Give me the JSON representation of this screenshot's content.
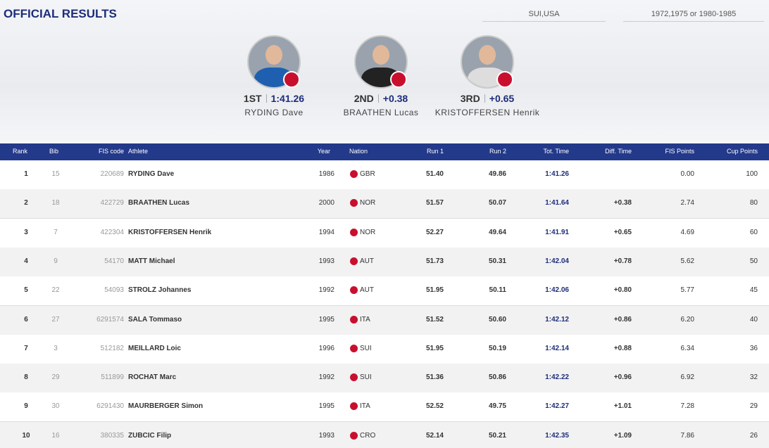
{
  "header": {
    "title": "OFFICIAL RESULTS",
    "filters": [
      "SUI,USA",
      "1972,1975 or 1980-1985"
    ]
  },
  "podium": [
    {
      "place": "1ST",
      "result": "1:41.26",
      "name": "RYDING Dave"
    },
    {
      "place": "2ND",
      "result": "+0.38",
      "name": "BRAATHEN Lucas"
    },
    {
      "place": "3RD",
      "result": "+0.65",
      "name": "KRISTOFFERSEN Henrik"
    }
  ],
  "table": {
    "columns": [
      "Rank",
      "Bib",
      "FIS code",
      "Athlete",
      "Year",
      "Nation",
      "Run 1",
      "Run 2",
      "Tot. Time",
      "Diff. Time",
      "FIS Points",
      "Cup Points"
    ],
    "rows": [
      {
        "rank": "1",
        "bib": "15",
        "code": "220689",
        "athlete": "RYDING Dave",
        "year": "1986",
        "nation": "GBR",
        "run1": "51.40",
        "run2": "49.86",
        "tot": "1:41.26",
        "fis": "0.00",
        "cup": "100"
      },
      {
        "rank": "2",
        "bib": "18",
        "code": "422729",
        "athlete": "BRAATHEN Lucas",
        "year": "2000",
        "nation": "NOR",
        "run1": "51.57",
        "run2": "50.07",
        "tot": "1:41.64",
        "diff": "+0.38",
        "fis": "2.74",
        "cup": "80"
      },
      {
        "rank": "3",
        "bib": "7",
        "code": "422304",
        "athlete": "KRISTOFFERSEN Henrik",
        "year": "1994",
        "nation": "NOR",
        "run1": "52.27",
        "run2": "49.64",
        "tot": "1:41.91",
        "diff": "+0.65",
        "fis": "4.69",
        "cup": "60"
      },
      {
        "rank": "4",
        "bib": "9",
        "code": "54170",
        "athlete": "MATT Michael",
        "year": "1993",
        "nation": "AUT",
        "run1": "51.73",
        "run2": "50.31",
        "tot": "1:42.04",
        "diff": "+0.78",
        "fis": "5.62",
        "cup": "50"
      },
      {
        "rank": "5",
        "bib": "22",
        "code": "54093",
        "athlete": "STROLZ Johannes",
        "year": "1992",
        "nation": "AUT",
        "run1": "51.95",
        "run2": "50.11",
        "tot": "1:42.06",
        "diff": "+0.80",
        "fis": "5.77",
        "cup": "45"
      },
      {
        "rank": "6",
        "bib": "27",
        "code": "6291574",
        "athlete": "SALA Tommaso",
        "year": "1995",
        "nation": "ITA",
        "run1": "51.52",
        "run2": "50.60",
        "tot": "1:42.12",
        "diff": "+0.86",
        "fis": "6.20",
        "cup": "40"
      },
      {
        "rank": "7",
        "bib": "3",
        "code": "512182",
        "athlete": "MEILLARD Loic",
        "year": "1996",
        "nation": "SUI",
        "run1": "51.95",
        "run2": "50.19",
        "tot": "1:42.14",
        "diff": "+0.88",
        "fis": "6.34",
        "cup": "36"
      },
      {
        "rank": "8",
        "bib": "29",
        "code": "511899",
        "athlete": "ROCHAT Marc",
        "year": "1992",
        "nation": "SUI",
        "run1": "51.36",
        "run2": "50.86",
        "tot": "1:42.22",
        "diff": "+0.96",
        "fis": "6.92",
        "cup": "32"
      },
      {
        "rank": "9",
        "bib": "30",
        "code": "6291430",
        "athlete": "MAURBERGER Simon",
        "year": "1995",
        "nation": "ITA",
        "run1": "52.52",
        "run2": "49.75",
        "tot": "1:42.27",
        "diff": "+1.01",
        "fis": "7.28",
        "cup": "29"
      },
      {
        "rank": "10",
        "bib": "16",
        "code": "380335",
        "athlete": "ZUBCIC Filip",
        "year": "1993",
        "nation": "CRO",
        "run1": "52.14",
        "run2": "50.21",
        "tot": "1:42.35",
        "diff": "+1.09",
        "fis": "7.86",
        "cup": "26"
      }
    ]
  }
}
